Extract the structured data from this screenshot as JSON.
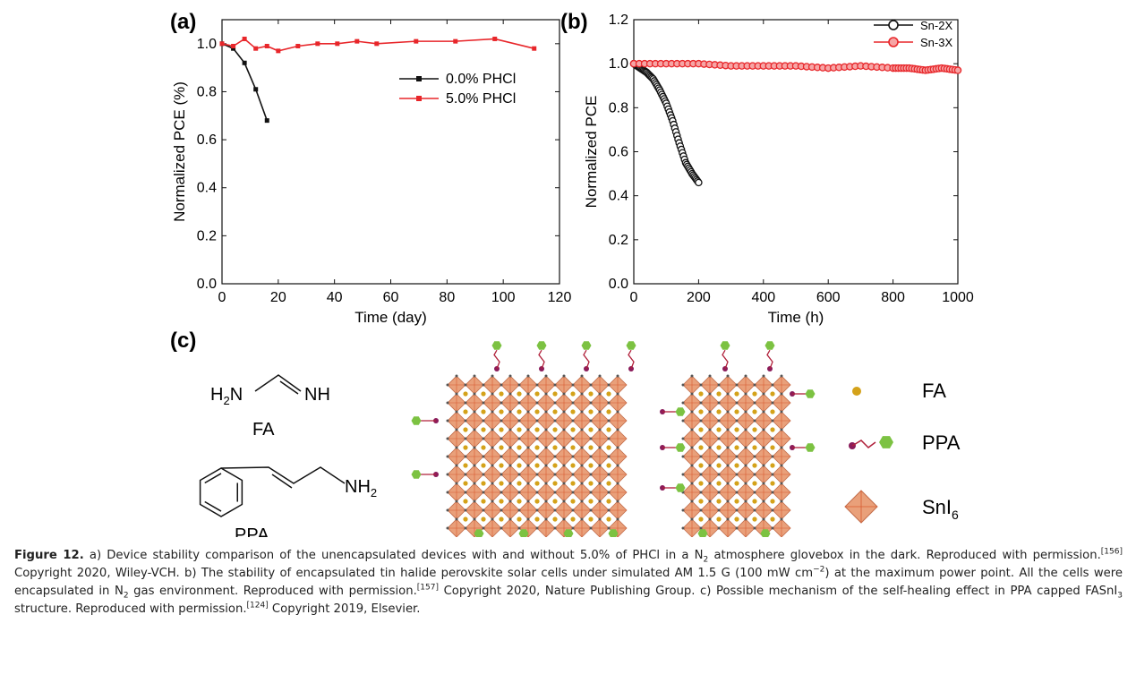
{
  "panel_a": {
    "tag": "(a)",
    "chart_data": {
      "type": "line",
      "xlabel": "Time (day)",
      "ylabel": "Normalized PCE (%)",
      "xlim": [
        0,
        120
      ],
      "ylim": [
        0.0,
        1.1
      ],
      "xticks": [
        "0",
        "20",
        "40",
        "60",
        "80",
        "100",
        "120"
      ],
      "yticks": [
        "0.0",
        "0.2",
        "0.4",
        "0.6",
        "0.8",
        "1.0"
      ],
      "legend": "top-right",
      "series": [
        {
          "name": "0.0% PHCl",
          "color": "#111111",
          "x": [
            0,
            4,
            8,
            12,
            16
          ],
          "y": [
            1.0,
            0.98,
            0.92,
            0.81,
            0.68
          ]
        },
        {
          "name": "5.0% PHCl",
          "color": "#e8262a",
          "x": [
            0,
            4,
            8,
            12,
            16,
            20,
            27,
            34,
            41,
            48,
            55,
            69,
            83,
            97,
            111
          ],
          "y": [
            1.0,
            0.99,
            1.02,
            0.98,
            0.99,
            0.97,
            0.99,
            1.0,
            1.0,
            1.01,
            1.0,
            1.01,
            1.01,
            1.02,
            0.98
          ]
        }
      ]
    }
  },
  "panel_b": {
    "tag": "(b)",
    "chart_data": {
      "type": "line",
      "xlabel": "Time (h)",
      "ylabel": "Normalized PCE",
      "xlim": [
        0,
        1000
      ],
      "ylim": [
        0.0,
        1.2
      ],
      "xticks": [
        "0",
        "200",
        "400",
        "600",
        "800",
        "1000"
      ],
      "yticks": [
        "0.0",
        "0.2",
        "0.4",
        "0.6",
        "0.8",
        "1.0",
        "1.2"
      ],
      "legend": "top-right",
      "series": [
        {
          "name": "Sn-2X",
          "color": "#111111",
          "x": [
            0,
            20,
            40,
            60,
            80,
            100,
            120,
            140,
            160,
            180,
            200
          ],
          "y": [
            1.0,
            0.98,
            0.96,
            0.93,
            0.88,
            0.82,
            0.74,
            0.64,
            0.55,
            0.5,
            0.46
          ]
        },
        {
          "name": "Sn-3X",
          "color": "#e8262a",
          "x": [
            0,
            100,
            200,
            300,
            400,
            500,
            600,
            700,
            800,
            850,
            900,
            950,
            1000
          ],
          "y": [
            1.0,
            1.0,
            1.0,
            0.99,
            0.99,
            0.99,
            0.98,
            0.99,
            0.98,
            0.98,
            0.97,
            0.98,
            0.97
          ]
        }
      ]
    }
  },
  "panel_c": {
    "tag": "(c)",
    "fa_formula_left": "H",
    "fa_formula_left_sub": "2",
    "fa_formula_left_end": "N",
    "fa_formula_right": "NH",
    "fa_name": "FA",
    "ppa_nh2": "NH",
    "ppa_nh2_sub": "2",
    "ppa_name": "PPA",
    "legend_fa": "FA",
    "legend_ppa": "PPA",
    "legend_sni6": "SnI",
    "legend_sni6_sub": "6",
    "colors": {
      "fa": "#d4a21a",
      "octahedron": "#e9a07a",
      "ppa_ring": "#7cc242",
      "ppa_link": "#b0203a",
      "ppa_head": "#8a1b5a"
    }
  },
  "caption": {
    "label": "Figure 12.",
    "a_text_1": " a) Device stability comparison of the unencapsulated devices with and without 5.0% of PHCl in a N",
    "a_sub": "2",
    "a_text_2": " atmosphere glovebox in the dark. Reproduced with permission.",
    "ref1": "[156]",
    "a_text_3": " Copyright 2020, Wiley-VCH. b) The stability of encapsulated tin halide perovskite solar cells under simulated AM 1.5 G (100 mW cm",
    "cm_sup": "−2",
    "b_text_1": ") at the maximum power point. All the cells were encapsulated in N",
    "b_sub": "2",
    "b_text_2": " gas environment. Reproduced with permission.",
    "ref2": "[157]",
    "b_text_3": " Copyright 2020, Nature Publishing Group. c) Possible mechanism of the self-healing effect in PPA capped FASnI",
    "c_sub": "3",
    "c_text_1": " structure. Reproduced with permission.",
    "ref3": "[124]",
    "c_text_2": " Copyright 2019, Elsevier."
  }
}
